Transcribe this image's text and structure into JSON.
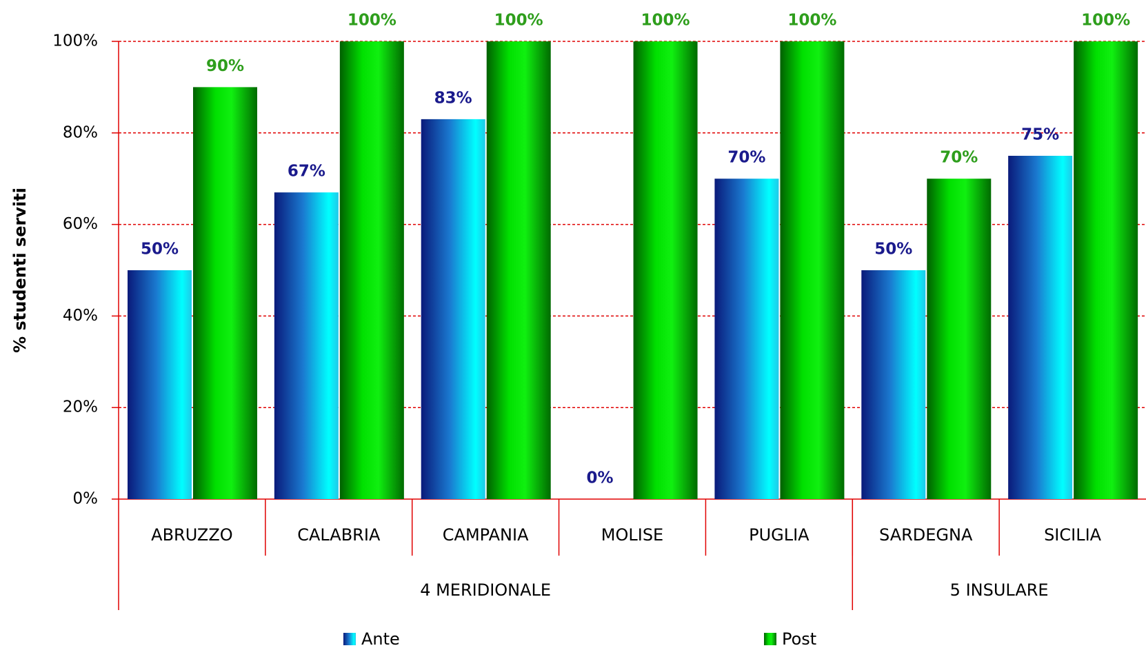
{
  "chart_data": {
    "type": "bar",
    "y_label": "% studenti serviti",
    "categories": [
      "ABRUZZO",
      "CALABRIA",
      "CAMPANIA",
      "MOLISE",
      "PUGLIA",
      "SARDEGNA",
      "SICILIA"
    ],
    "groups": [
      {
        "name": "4 MERIDIONALE",
        "span": 5
      },
      {
        "name": "5 INSULARE",
        "span": 2
      }
    ],
    "series": [
      {
        "name": "Ante",
        "color": "#1aa6e0",
        "label_color": "#1a1a8c",
        "values": [
          50,
          67,
          83,
          0,
          70,
          50,
          75
        ],
        "value_labels": [
          "50%",
          "67%",
          "83%",
          "0%",
          "70%",
          "50%",
          "75%"
        ]
      },
      {
        "name": "Post",
        "color": "#00d000",
        "label_color": "#2e9e1c",
        "values": [
          90,
          100,
          100,
          100,
          100,
          70,
          100
        ],
        "value_labels": [
          "90%",
          "100%",
          "100%",
          "100%",
          "100%",
          "70%",
          "100%"
        ]
      }
    ],
    "ylim": [
      0,
      100
    ],
    "yticks": [
      {
        "value": 0,
        "label": "0%"
      },
      {
        "value": 20,
        "label": "20%"
      },
      {
        "value": 40,
        "label": "40%"
      },
      {
        "value": 60,
        "label": "60%"
      },
      {
        "value": 80,
        "label": "80%"
      },
      {
        "value": 100,
        "label": "100%"
      }
    ],
    "grid": true
  }
}
